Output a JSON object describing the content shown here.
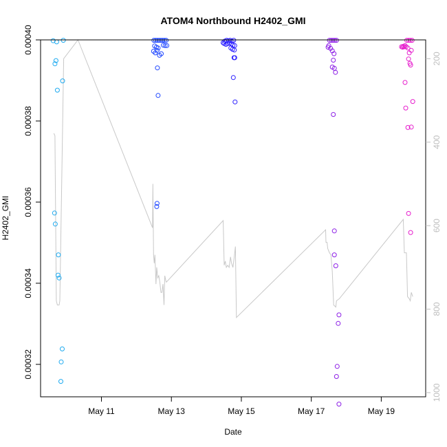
{
  "chart_data": {
    "type": "scatter",
    "title": "ATOM4 Northbound H2402_GMI",
    "xlabel": "Date",
    "ylabel": "H2402_GMI",
    "x_tick_labels": [
      {
        "day": 11.0,
        "label": "May 11"
      },
      {
        "day": 13.0,
        "label": "May 13"
      },
      {
        "day": 15.0,
        "label": "May 15"
      },
      {
        "day": 17.0,
        "label": "May 17"
      },
      {
        "day": 19.0,
        "label": "May 19"
      }
    ],
    "y_ticks": [
      {
        "value": 0.00032,
        "label": "0.00032"
      },
      {
        "value": 0.00034,
        "label": "0.00034"
      },
      {
        "value": 0.00036,
        "label": "0.00036"
      },
      {
        "value": 0.00038,
        "label": "0.00038"
      },
      {
        "value": 0.0004,
        "label": "0.00040"
      }
    ],
    "y2_ticks": [
      {
        "value": 200,
        "label": "200"
      },
      {
        "value": 400,
        "label": "400"
      },
      {
        "value": 600,
        "label": "600"
      },
      {
        "value": 800,
        "label": "800"
      },
      {
        "value": 1000,
        "label": "1000"
      }
    ],
    "xlim": [
      9.26,
      20.27
    ],
    "ylim": [
      0.000312,
      0.0004
    ],
    "y2lim": [
      1010,
      155
    ],
    "y2_reversed": true,
    "grid": false,
    "legend": "none",
    "colors": {
      "line": "#c8c8c8",
      "axis": "#000000",
      "secondary_axis": "#bebebe"
    },
    "point_groups": [
      {
        "color": "#1eaaf0",
        "points": [
          [
            9.62,
            0.0003998
          ],
          [
            9.72,
            0.0003995
          ],
          [
            9.91,
            0.0003999
          ],
          [
            9.67,
            0.0003941
          ],
          [
            9.7,
            0.0003949
          ],
          [
            9.89,
            0.0003899
          ],
          [
            9.74,
            0.0003876
          ],
          [
            9.66,
            0.0003573
          ],
          [
            9.68,
            0.0003546
          ],
          [
            9.77,
            0.000347
          ],
          [
            9.76,
            0.000342
          ],
          [
            9.79,
            0.0003413
          ],
          [
            9.88,
            0.0003238
          ],
          [
            9.85,
            0.0003206
          ],
          [
            9.84,
            0.0003158
          ]
        ]
      },
      {
        "color": "#1e46ff",
        "points": [
          [
            12.5,
            0.0003999
          ],
          [
            12.55,
            0.0003999
          ],
          [
            12.6,
            0.0003999
          ],
          [
            12.65,
            0.0003999
          ],
          [
            12.7,
            0.0003999
          ],
          [
            12.75,
            0.0003999
          ],
          [
            12.8,
            0.0003999
          ],
          [
            12.85,
            0.0003999
          ],
          [
            12.52,
            0.0003985
          ],
          [
            12.57,
            0.0003982
          ],
          [
            12.62,
            0.000398
          ],
          [
            12.77,
            0.0003987
          ],
          [
            12.82,
            0.0003986
          ],
          [
            12.87,
            0.0003986
          ],
          [
            12.49,
            0.0003972
          ],
          [
            12.54,
            0.0003968
          ],
          [
            12.59,
            0.0003974
          ],
          [
            12.66,
            0.0003962
          ],
          [
            12.71,
            0.0003966
          ],
          [
            12.6,
            0.0003931
          ],
          [
            12.62,
            0.0003863
          ],
          [
            12.58,
            0.0003589
          ],
          [
            12.59,
            0.0003597
          ]
        ]
      },
      {
        "color": "#2a1eff",
        "points": [
          [
            14.48,
            0.0003993
          ],
          [
            14.53,
            0.0003997
          ],
          [
            14.58,
            0.0003999
          ],
          [
            14.63,
            0.0003998
          ],
          [
            14.68,
            0.0003999
          ],
          [
            14.73,
            0.0003997
          ],
          [
            14.78,
            0.0003999
          ],
          [
            14.51,
            0.0003991
          ],
          [
            14.56,
            0.0003989
          ],
          [
            14.61,
            0.0003991
          ],
          [
            14.66,
            0.0003992
          ],
          [
            14.71,
            0.000399
          ],
          [
            14.76,
            0.0003987
          ],
          [
            14.81,
            0.0003986
          ],
          [
            14.7,
            0.000398
          ],
          [
            14.75,
            0.0003977
          ],
          [
            14.8,
            0.0003975
          ],
          [
            14.79,
            0.0003956
          ],
          [
            14.81,
            0.0003956
          ],
          [
            14.77,
            0.0003907
          ],
          [
            14.82,
            0.0003847
          ]
        ]
      },
      {
        "color": "#8c1ee6",
        "points": [
          [
            17.48,
            0.0003982
          ],
          [
            17.52,
            0.0003999
          ],
          [
            17.57,
            0.0003999
          ],
          [
            17.62,
            0.0003999
          ],
          [
            17.67,
            0.0003999
          ],
          [
            17.72,
            0.0003999
          ],
          [
            17.5,
            0.0003986
          ],
          [
            17.55,
            0.0003979
          ],
          [
            17.6,
            0.0003973
          ],
          [
            17.65,
            0.0003966
          ],
          [
            17.63,
            0.000395
          ],
          [
            17.6,
            0.0003933
          ],
          [
            17.66,
            0.000393
          ],
          [
            17.69,
            0.000392
          ],
          [
            17.63,
            0.0003816
          ],
          [
            17.66,
            0.0003529
          ],
          [
            17.66,
            0.000347
          ],
          [
            17.7,
            0.0003443
          ],
          [
            17.79,
            0.0003322
          ],
          [
            17.77,
            0.0003301
          ],
          [
            17.74,
            0.0003195
          ],
          [
            17.72,
            0.000317
          ],
          [
            17.79,
            0.0003102
          ]
        ]
      },
      {
        "color": "#e61ecd",
        "points": [
          [
            19.58,
            0.0003983
          ],
          [
            19.63,
            0.0003984
          ],
          [
            19.68,
            0.0003986
          ],
          [
            19.73,
            0.0003999
          ],
          [
            19.78,
            0.0003999
          ],
          [
            19.83,
            0.0003999
          ],
          [
            19.88,
            0.0003999
          ],
          [
            19.61,
            0.0003982
          ],
          [
            19.66,
            0.0003983
          ],
          [
            19.71,
            0.0003983
          ],
          [
            19.76,
            0.000398
          ],
          [
            19.86,
            0.0003974
          ],
          [
            19.8,
            0.0003968
          ],
          [
            19.78,
            0.0003953
          ],
          [
            19.82,
            0.0003942
          ],
          [
            19.84,
            0.0003938
          ],
          [
            19.68,
            0.0003895
          ],
          [
            19.9,
            0.0003848
          ],
          [
            19.7,
            0.0003832
          ],
          [
            19.76,
            0.0003784
          ],
          [
            19.86,
            0.0003785
          ],
          [
            19.84,
            0.0003525
          ],
          [
            19.78,
            0.0003572
          ]
        ]
      }
    ],
    "line_series": {
      "axis": "secondary",
      "points": [
        [
          9.63,
          380
        ],
        [
          9.65,
          380
        ],
        [
          9.67,
          385
        ],
        [
          9.71,
          780
        ],
        [
          9.74,
          790
        ],
        [
          9.79,
          790
        ],
        [
          9.81,
          780
        ],
        [
          9.92,
          200
        ],
        [
          10.33,
          155
        ],
        [
          12.46,
          605
        ],
        [
          12.47,
          500
        ],
        [
          12.49,
          670
        ],
        [
          12.51,
          690
        ],
        [
          12.53,
          670
        ],
        [
          12.56,
          740
        ],
        [
          12.58,
          700
        ],
        [
          12.61,
          725
        ],
        [
          12.64,
          720
        ],
        [
          12.67,
          735
        ],
        [
          12.7,
          760
        ],
        [
          12.73,
          760
        ],
        [
          12.76,
          740
        ],
        [
          12.79,
          790
        ],
        [
          12.81,
          720
        ],
        [
          12.85,
          735
        ],
        [
          12.86,
          735
        ],
        [
          14.48,
          588
        ],
        [
          14.49,
          620
        ],
        [
          14.51,
          695
        ],
        [
          14.54,
          685
        ],
        [
          14.57,
          700
        ],
        [
          14.61,
          695
        ],
        [
          14.65,
          700
        ],
        [
          14.69,
          675
        ],
        [
          14.72,
          690
        ],
        [
          14.76,
          700
        ],
        [
          14.79,
          680
        ],
        [
          14.83,
          650
        ],
        [
          14.86,
          820
        ],
        [
          17.41,
          610
        ],
        [
          17.42,
          640
        ],
        [
          17.45,
          640
        ],
        [
          17.47,
          655
        ],
        [
          17.52,
          665
        ],
        [
          17.56,
          670
        ],
        [
          17.6,
          710
        ],
        [
          17.64,
          790
        ],
        [
          17.7,
          795
        ],
        [
          17.72,
          780
        ],
        [
          17.8,
          775
        ],
        [
          19.63,
          585
        ],
        [
          19.66,
          665
        ],
        [
          19.72,
          665
        ],
        [
          19.75,
          770
        ],
        [
          19.8,
          775
        ],
        [
          19.83,
          780
        ],
        [
          19.86,
          760
        ],
        [
          19.9,
          770
        ]
      ]
    }
  }
}
